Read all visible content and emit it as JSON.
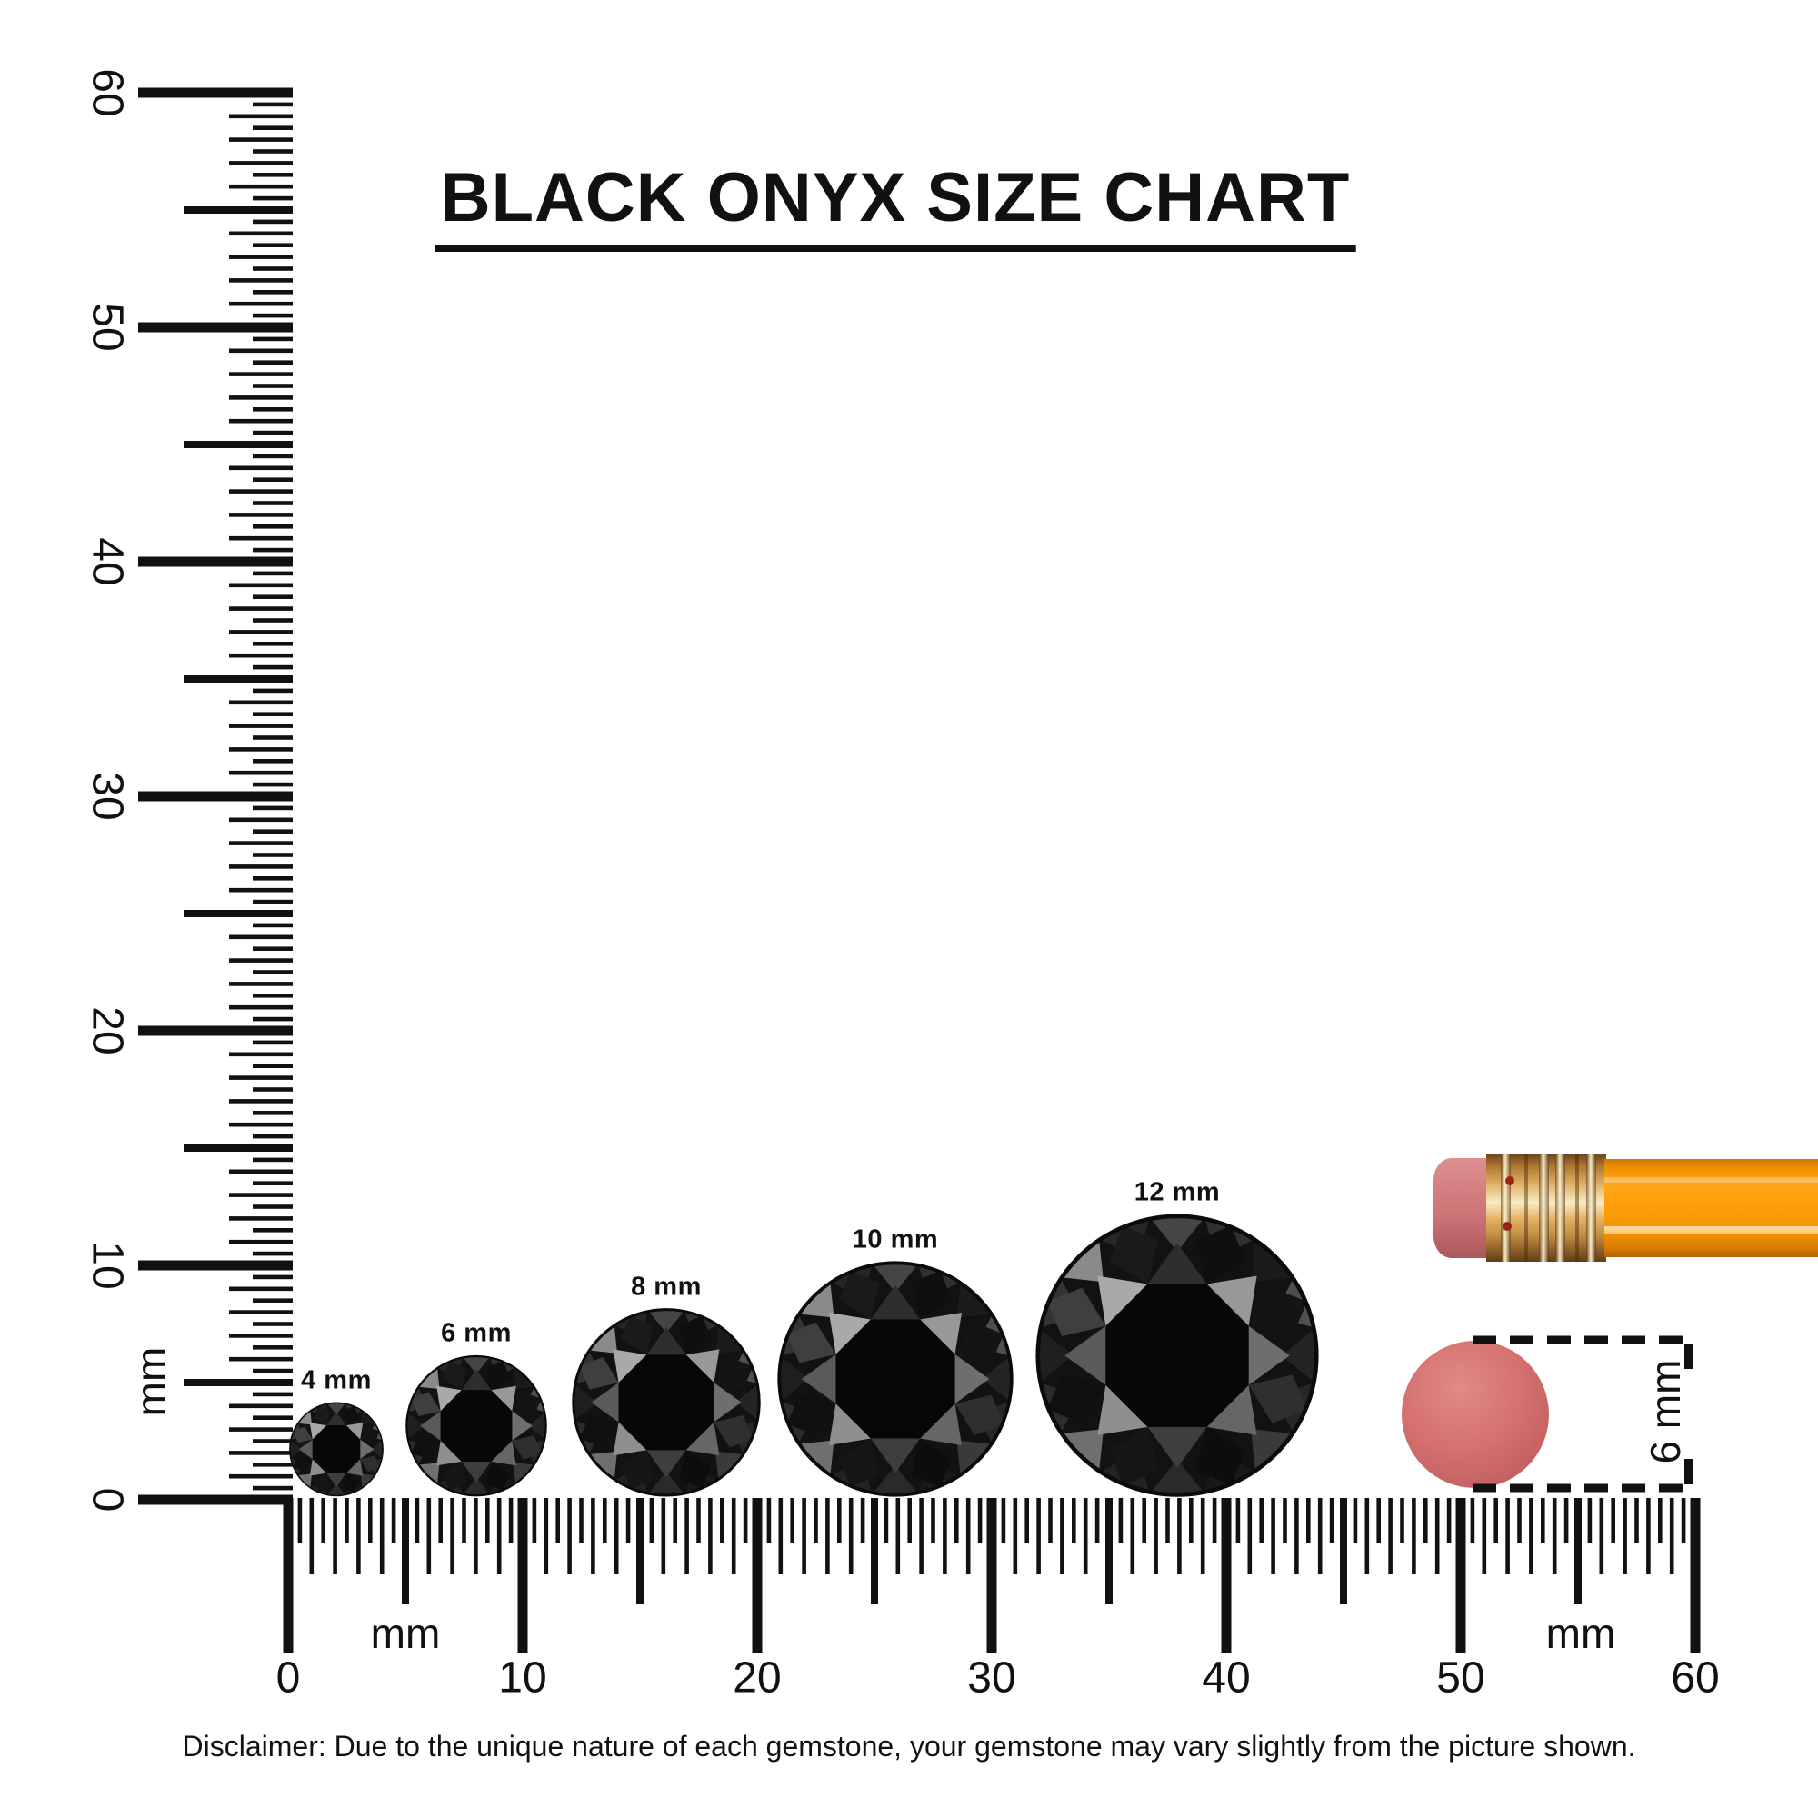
{
  "title": "BLACK ONYX SIZE CHART",
  "rulers": {
    "vertical": {
      "unit": "mm",
      "tick_labels": [
        "0",
        "10",
        "20",
        "30",
        "40",
        "50",
        "60"
      ],
      "range_mm": [
        0,
        60
      ]
    },
    "horizontal": {
      "unit_labels": [
        "mm",
        "mm"
      ],
      "tick_labels": [
        "0",
        "10",
        "20",
        "30",
        "40",
        "50",
        "60"
      ],
      "range_mm": [
        0,
        60
      ]
    }
  },
  "gems": [
    {
      "label": "4 mm",
      "size_mm": 4
    },
    {
      "label": "6 mm",
      "size_mm": 6
    },
    {
      "label": "8 mm",
      "size_mm": 8
    },
    {
      "label": "10 mm",
      "size_mm": 10
    },
    {
      "label": "12 mm",
      "size_mm": 12
    }
  ],
  "scale_reference": {
    "object": "pencil-with-eraser",
    "eraser_diameter_label": "6 mm"
  },
  "disclaimer": "Disclaimer: Due to the unique nature of each gemstone, your gemstone may vary slightly from the picture shown.",
  "colors": {
    "ink": "#111111",
    "gem_black": "#121212",
    "gem_table": "#070707",
    "pencil_orange": "#ffa01a",
    "eraser_pink": "#d57170",
    "eraser_pink_light": "#e08a86",
    "eraser_pink_dark": "#c05e5f",
    "ferrule_gold": "#dcaa5e"
  }
}
